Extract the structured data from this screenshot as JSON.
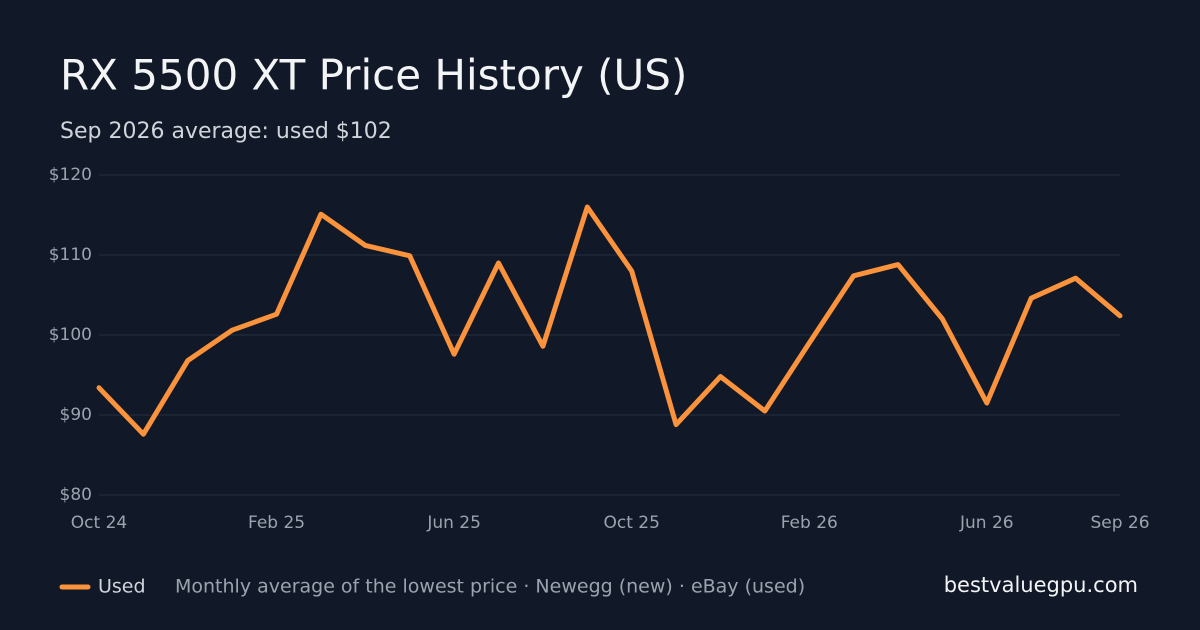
{
  "chart_data": {
    "type": "line",
    "title": "RX 5500 XT Price History (US)",
    "subtitle": "Sep 2026 average: used $102",
    "categories": [
      "Oct 24",
      null,
      null,
      null,
      "Feb 25",
      null,
      null,
      null,
      "Jun 25",
      null,
      null,
      null,
      "Oct 25",
      null,
      null,
      null,
      "Feb 26",
      null,
      null,
      null,
      "Jun 26",
      null,
      null,
      "Sep 26"
    ],
    "series": [
      {
        "name": "Used",
        "color": "#fb923c",
        "values": [
          93.4,
          87.6,
          96.8,
          100.6,
          102.6,
          115.1,
          111.2,
          109.9,
          97.6,
          109.0,
          98.6,
          116.0,
          108.0,
          88.8,
          94.8,
          90.5,
          99.0,
          107.4,
          108.8,
          102.0,
          91.5,
          104.6,
          107.1,
          102.4
        ]
      }
    ],
    "ylim": [
      80,
      120
    ],
    "yticks": [
      {
        "value": 80,
        "label": "$80"
      },
      {
        "value": 90,
        "label": "$90"
      },
      {
        "value": 100,
        "label": "$100"
      },
      {
        "value": 110,
        "label": "$110"
      },
      {
        "value": 120,
        "label": "$120"
      }
    ],
    "grid": true,
    "footnote": "Monthly average of the lowest price · Newegg (new) · eBay (used)",
    "site": "bestvaluegpu.com"
  }
}
